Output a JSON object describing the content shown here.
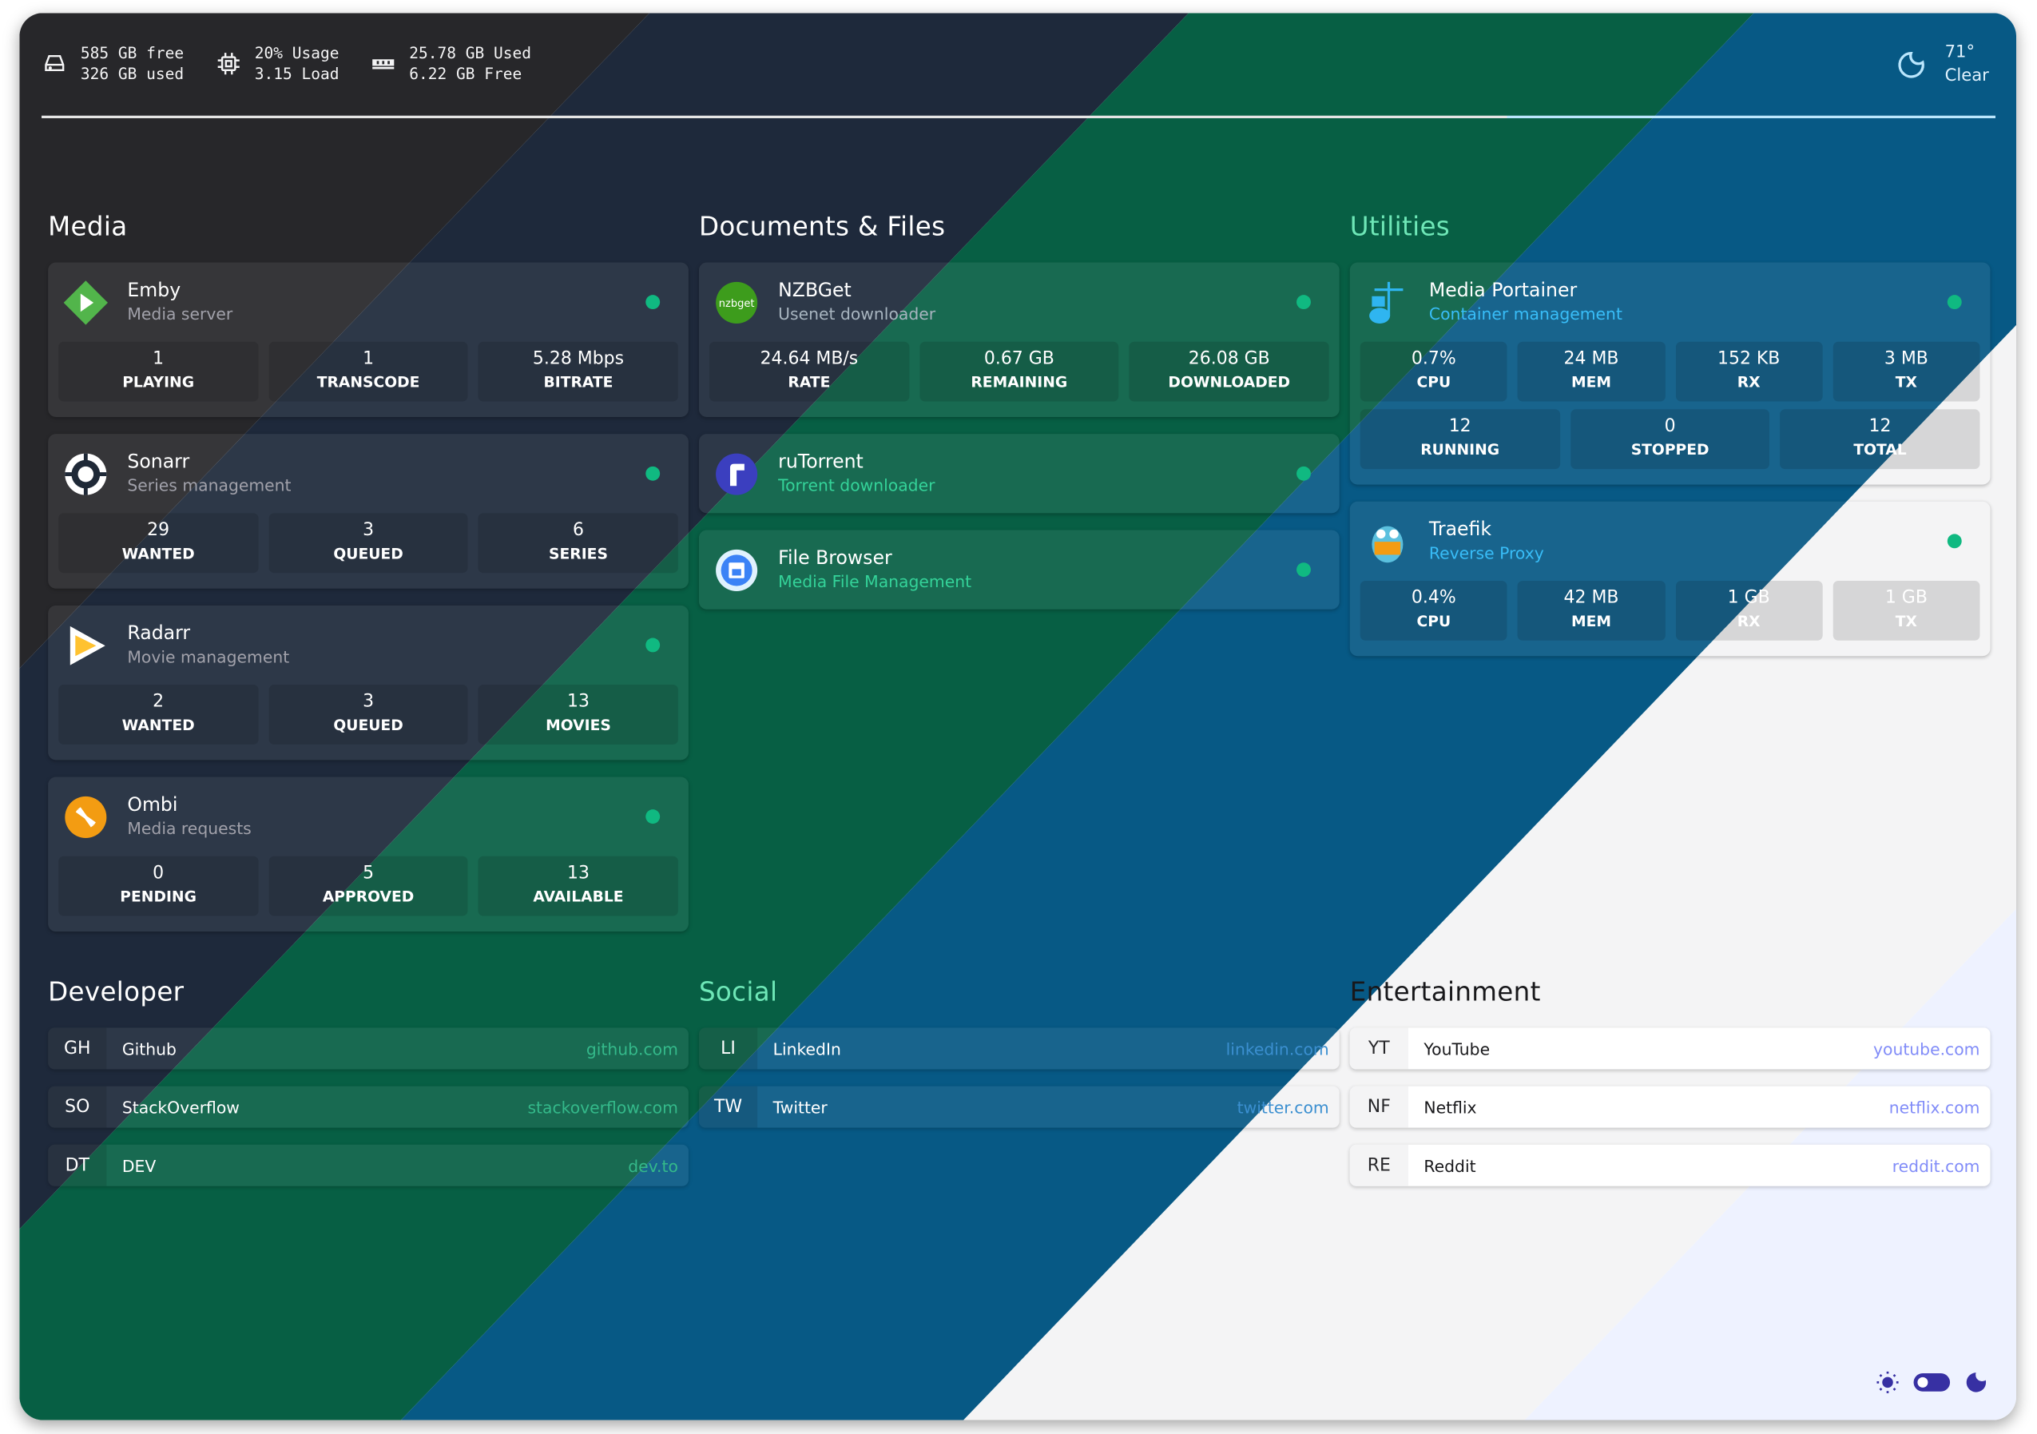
{
  "theme": {
    "background_bands": [
      "#27272a",
      "#1e293b",
      "#075f44",
      "#075985",
      "#f4f4f5",
      "#eef2ff"
    ],
    "status_online": "#10b981",
    "toggle_color": "#3730a3"
  },
  "system": {
    "disk": {
      "icon": "hard-drive-icon",
      "line1": "585 GB free",
      "line2": "326 GB used"
    },
    "cpu": {
      "icon": "cpu-icon",
      "line1": "20% Usage",
      "line2": "3.15 Load"
    },
    "memory": {
      "icon": "memory-icon",
      "line1": "25.78 GB Used",
      "line2": "6.22 GB Free"
    }
  },
  "weather": {
    "icon": "moon-icon",
    "temperature": "71°",
    "condition": "Clear"
  },
  "groups": [
    {
      "title": "Media",
      "services": [
        {
          "name": "Emby",
          "description": "Media server",
          "icon": "emby-icon",
          "desc_color": "#a1a1aa",
          "stats": [
            {
              "value": "1",
              "label": "PLAYING"
            },
            {
              "value": "1",
              "label": "TRANSCODE"
            },
            {
              "value": "5.28 Mbps",
              "label": "BITRATE"
            }
          ]
        },
        {
          "name": "Sonarr",
          "description": "Series management",
          "icon": "sonarr-icon",
          "desc_color": "#a1a1aa",
          "stats": [
            {
              "value": "29",
              "label": "WANTED"
            },
            {
              "value": "3",
              "label": "QUEUED"
            },
            {
              "value": "6",
              "label": "SERIES"
            }
          ]
        },
        {
          "name": "Radarr",
          "description": "Movie management",
          "icon": "radarr-icon",
          "desc_color": "#a1a1aa",
          "stats": [
            {
              "value": "2",
              "label": "WANTED"
            },
            {
              "value": "3",
              "label": "QUEUED"
            },
            {
              "value": "13",
              "label": "MOVIES"
            }
          ]
        },
        {
          "name": "Ombi",
          "description": "Media requests",
          "icon": "ombi-icon",
          "desc_color": "#a1a1aa",
          "stats": [
            {
              "value": "0",
              "label": "PENDING"
            },
            {
              "value": "5",
              "label": "APPROVED"
            },
            {
              "value": "13",
              "label": "AVAILABLE"
            }
          ]
        }
      ]
    },
    {
      "title": "Documents & Files",
      "services": [
        {
          "name": "NZBGet",
          "description": "Usenet downloader",
          "icon": "nzbget-icon",
          "logo_text": "nzbget",
          "desc_color": "#a7b4bf",
          "stats": [
            {
              "value": "24.64 MB/s",
              "label": "RATE"
            },
            {
              "value": "0.67 GB",
              "label": "REMAINING"
            },
            {
              "value": "26.08 GB",
              "label": "DOWNLOADED"
            }
          ]
        },
        {
          "name": "ruTorrent",
          "description": "Torrent downloader",
          "icon": "rutorrent-icon",
          "desc_color": "#34d399",
          "stats": []
        },
        {
          "name": "File Browser",
          "description": "Media File Management",
          "icon": "file-browser-icon",
          "desc_color": "#34d399",
          "stats": []
        }
      ]
    },
    {
      "title": "Utilities",
      "services": [
        {
          "name": "Media Portainer",
          "description": "Container management",
          "icon": "portainer-icon",
          "desc_color": "#38bdf8",
          "stats": [
            {
              "value": "0.7%",
              "label": "CPU"
            },
            {
              "value": "24 MB",
              "label": "MEM"
            },
            {
              "value": "152 KB",
              "label": "RX"
            },
            {
              "value": "3 MB",
              "label": "TX"
            }
          ],
          "stats2": [
            {
              "value": "12",
              "label": "RUNNING"
            },
            {
              "value": "0",
              "label": "STOPPED"
            },
            {
              "value": "12",
              "label": "TOTAL"
            }
          ]
        },
        {
          "name": "Traefik",
          "description": "Reverse Proxy",
          "icon": "traefik-icon",
          "desc_color": "#38bdf8",
          "stats": [
            {
              "value": "0.4%",
              "label": "CPU"
            },
            {
              "value": "42 MB",
              "label": "MEM"
            },
            {
              "value": "1 GB",
              "label": "RX"
            },
            {
              "value": "1 GB",
              "label": "TX"
            }
          ]
        }
      ]
    }
  ],
  "bookmark_groups": [
    {
      "title": "Developer",
      "url_color": "#34b98a",
      "items": [
        {
          "abbr": "GH",
          "name": "Github",
          "url": "github.com"
        },
        {
          "abbr": "SO",
          "name": "StackOverflow",
          "url": "stackoverflow.com"
        },
        {
          "abbr": "DT",
          "name": "DEV",
          "url": "dev.to"
        }
      ]
    },
    {
      "title": "Social",
      "url_color": "#3b8fd0",
      "items": [
        {
          "abbr": "LI",
          "name": "LinkedIn",
          "url": "linkedin.com"
        },
        {
          "abbr": "TW",
          "name": "Twitter",
          "url": "twitter.com"
        }
      ]
    },
    {
      "title": "Entertainment",
      "url_color": "#818cf8",
      "items": [
        {
          "abbr": "YT",
          "name": "YouTube",
          "url": "youtube.com"
        },
        {
          "abbr": "NF",
          "name": "Netflix",
          "url": "netflix.com"
        },
        {
          "abbr": "RE",
          "name": "Reddit",
          "url": "reddit.com"
        }
      ]
    }
  ],
  "theme_toggle": {
    "light_icon": "sun-icon",
    "dark_icon": "moon-icon",
    "state": "dark"
  }
}
